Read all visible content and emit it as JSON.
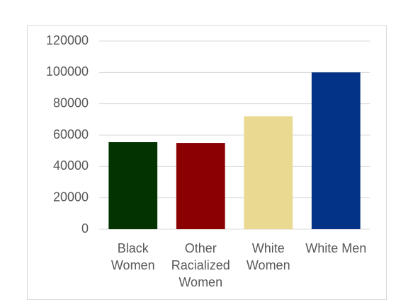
{
  "chart_data": {
    "type": "bar",
    "categories": [
      "Black Women",
      "Other Racialized Women",
      "White Women",
      "White Men"
    ],
    "values": [
      55500,
      55000,
      72000,
      100000
    ],
    "colors": [
      "#023300",
      "#8b0000",
      "#e9d991",
      "#033387"
    ],
    "ylim": [
      0,
      120000
    ],
    "yticks": [
      0,
      20000,
      40000,
      60000,
      80000,
      100000,
      120000
    ],
    "grid": true
  }
}
